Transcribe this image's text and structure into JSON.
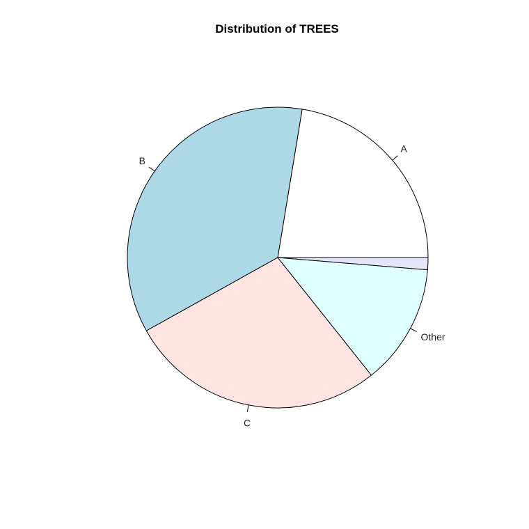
{
  "chart_data": {
    "type": "pie",
    "title": "Distribution of TREES",
    "direction": "counterclockwise",
    "start": "3 o'clock",
    "slices": [
      {
        "label": "A",
        "value": 22.4,
        "color": "#ffffff"
      },
      {
        "label": "B",
        "value": 35.7,
        "color": "#add8e6"
      },
      {
        "label": "C",
        "value": 27.6,
        "color": "#ffe4e1"
      },
      {
        "label": "Other",
        "value": 13.0,
        "color": "#e0ffff"
      },
      {
        "label": "",
        "value": 1.3,
        "color": "#e6e6fa"
      }
    ]
  }
}
